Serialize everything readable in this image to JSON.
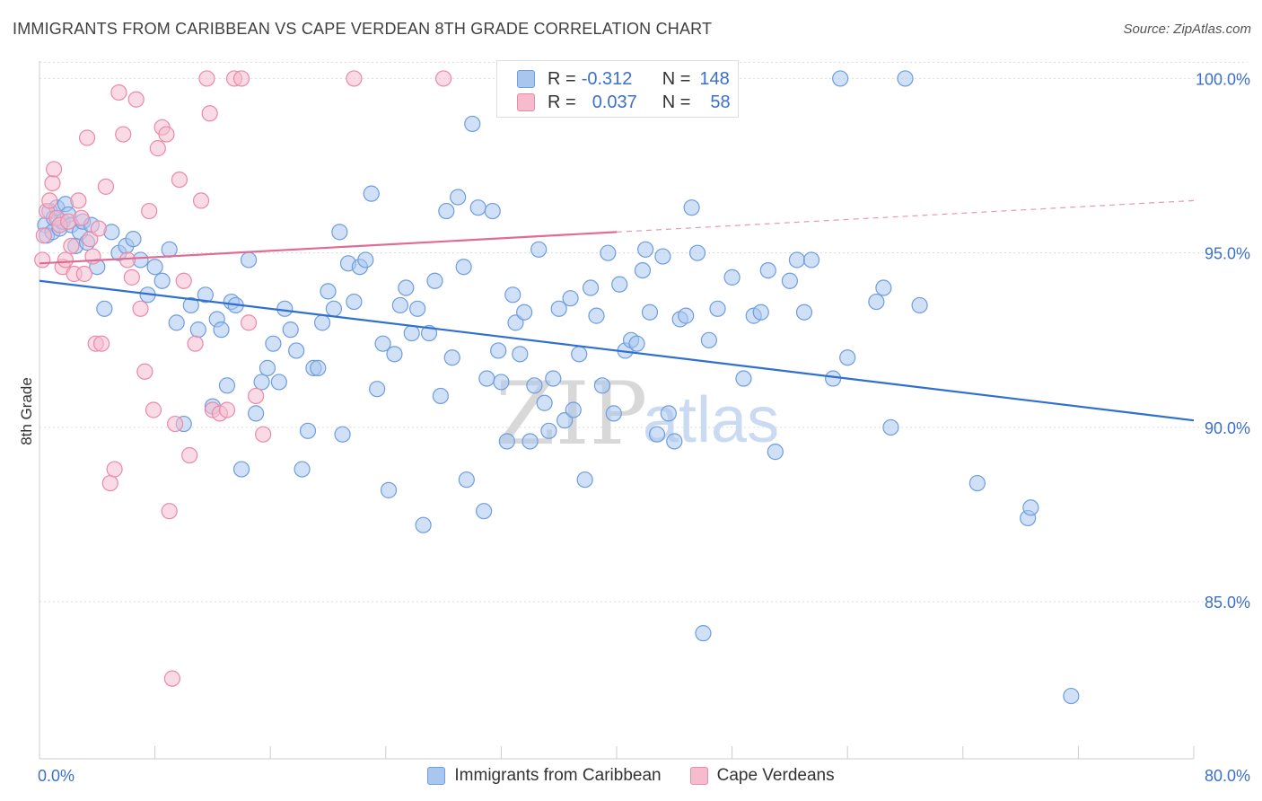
{
  "header": {
    "title": "IMMIGRANTS FROM CARIBBEAN VS CAPE VERDEAN 8TH GRADE CORRELATION CHART",
    "source": "Source: ZipAtlas.com"
  },
  "watermark": {
    "part1": "ZIP",
    "part2": "atlas"
  },
  "stats": [
    {
      "r_label": "R =",
      "r_value": "-0.312",
      "n_label": "N =",
      "n_value": "148",
      "color": "#a9c6ef",
      "border": "#6e9de0"
    },
    {
      "r_label": "R =",
      "r_value": "0.037",
      "n_label": "N =",
      "n_value": "58",
      "color": "#f6bccd",
      "border": "#e98aa7"
    }
  ],
  "legend": [
    {
      "label": "Immigrants from Caribbean",
      "color": "#a9c6ef",
      "border": "#6e9de0"
    },
    {
      "label": "Cape Verdeans",
      "color": "#f6bccd",
      "border": "#e98aa7"
    }
  ],
  "chart_data": {
    "type": "scatter",
    "ylabel": "8th Grade",
    "xlim": [
      0,
      80
    ],
    "ylim": [
      80.5,
      100.5
    ],
    "x_tick_labels": [
      {
        "value": 0,
        "label": "0.0%"
      },
      {
        "value": 80,
        "label": "80.0%"
      }
    ],
    "y_tick_labels": [
      {
        "value": 100,
        "label": "100.0%"
      },
      {
        "value": 95,
        "label": "95.0%"
      },
      {
        "value": 90,
        "label": "90.0%"
      },
      {
        "value": 85,
        "label": "85.0%"
      }
    ],
    "grid": true,
    "legend_position": "bottom-center",
    "series": [
      {
        "name": "Immigrants from Caribbean",
        "color": "#6e9de0",
        "fill": "#a9c6ef",
        "line_color": "#2f6fd0",
        "trend": {
          "x": [
            0,
            80
          ],
          "y": [
            94.2,
            90.2
          ]
        },
        "points": [
          [
            0.4,
            95.8
          ],
          [
            0.5,
            95.5
          ],
          [
            0.7,
            96.2
          ],
          [
            0.9,
            95.6
          ],
          [
            1.0,
            96.0
          ],
          [
            1.2,
            96.3
          ],
          [
            1.4,
            95.7
          ],
          [
            1.6,
            95.9
          ],
          [
            1.8,
            96.4
          ],
          [
            2.0,
            96.1
          ],
          [
            2.2,
            95.8
          ],
          [
            2.5,
            95.2
          ],
          [
            2.8,
            95.6
          ],
          [
            3.0,
            95.9
          ],
          [
            3.3,
            95.3
          ],
          [
            3.6,
            95.8
          ],
          [
            4.0,
            94.6
          ],
          [
            4.5,
            93.4
          ],
          [
            5.0,
            95.6
          ],
          [
            5.5,
            95.0
          ],
          [
            6.0,
            95.2
          ],
          [
            6.5,
            95.4
          ],
          [
            7.0,
            94.8
          ],
          [
            7.5,
            93.8
          ],
          [
            8.0,
            94.6
          ],
          [
            8.5,
            94.2
          ],
          [
            9.0,
            95.1
          ],
          [
            9.5,
            93.0
          ],
          [
            10.0,
            90.1
          ],
          [
            10.5,
            93.5
          ],
          [
            11.0,
            92.8
          ],
          [
            11.5,
            93.8
          ],
          [
            12.0,
            90.6
          ],
          [
            12.3,
            93.1
          ],
          [
            12.6,
            92.8
          ],
          [
            13.0,
            91.2
          ],
          [
            13.3,
            93.6
          ],
          [
            13.6,
            93.5
          ],
          [
            14.0,
            88.8
          ],
          [
            14.5,
            94.8
          ],
          [
            15.0,
            90.4
          ],
          [
            15.4,
            91.3
          ],
          [
            15.8,
            91.7
          ],
          [
            16.2,
            92.4
          ],
          [
            16.6,
            91.3
          ],
          [
            17.0,
            93.4
          ],
          [
            17.4,
            92.8
          ],
          [
            17.8,
            92.2
          ],
          [
            18.2,
            88.8
          ],
          [
            18.6,
            89.9
          ],
          [
            19.0,
            91.7
          ],
          [
            19.3,
            91.7
          ],
          [
            19.6,
            93.0
          ],
          [
            20.0,
            93.9
          ],
          [
            20.4,
            93.4
          ],
          [
            20.8,
            95.6
          ],
          [
            21.0,
            89.8
          ],
          [
            21.4,
            94.7
          ],
          [
            21.8,
            93.6
          ],
          [
            22.2,
            94.6
          ],
          [
            22.6,
            94.8
          ],
          [
            23.0,
            96.7
          ],
          [
            23.4,
            91.1
          ],
          [
            23.8,
            92.4
          ],
          [
            24.2,
            88.2
          ],
          [
            24.6,
            92.1
          ],
          [
            25.0,
            93.5
          ],
          [
            25.4,
            94.0
          ],
          [
            25.8,
            92.7
          ],
          [
            26.2,
            93.4
          ],
          [
            26.6,
            87.2
          ],
          [
            27.0,
            92.7
          ],
          [
            27.4,
            94.2
          ],
          [
            27.8,
            90.9
          ],
          [
            28.2,
            96.2
          ],
          [
            28.6,
            92.0
          ],
          [
            29.0,
            96.6
          ],
          [
            29.4,
            94.6
          ],
          [
            29.6,
            88.5
          ],
          [
            30.0,
            98.7
          ],
          [
            30.4,
            96.3
          ],
          [
            30.8,
            87.6
          ],
          [
            31.0,
            91.4
          ],
          [
            31.4,
            96.2
          ],
          [
            31.8,
            92.2
          ],
          [
            32.0,
            91.3
          ],
          [
            32.4,
            89.6
          ],
          [
            32.8,
            93.8
          ],
          [
            33.0,
            93.0
          ],
          [
            33.3,
            92.1
          ],
          [
            33.6,
            93.3
          ],
          [
            34.0,
            89.6
          ],
          [
            34.3,
            91.2
          ],
          [
            34.6,
            95.1
          ],
          [
            35.0,
            90.7
          ],
          [
            35.3,
            89.9
          ],
          [
            35.6,
            91.4
          ],
          [
            36.0,
            93.4
          ],
          [
            36.4,
            90.2
          ],
          [
            36.8,
            93.7
          ],
          [
            37.0,
            90.5
          ],
          [
            37.4,
            92.1
          ],
          [
            37.8,
            88.5
          ],
          [
            38.2,
            94.0
          ],
          [
            38.6,
            93.2
          ],
          [
            39.0,
            91.2
          ],
          [
            39.4,
            95.0
          ],
          [
            39.8,
            90.4
          ],
          [
            40.2,
            94.1
          ],
          [
            40.6,
            92.2
          ],
          [
            41.0,
            92.5
          ],
          [
            41.4,
            92.4
          ],
          [
            41.8,
            94.5
          ],
          [
            42.0,
            95.1
          ],
          [
            42.3,
            93.3
          ],
          [
            42.8,
            89.8
          ],
          [
            43.2,
            94.9
          ],
          [
            43.6,
            90.4
          ],
          [
            44.0,
            89.6
          ],
          [
            44.4,
            93.1
          ],
          [
            44.8,
            93.2
          ],
          [
            45.2,
            96.3
          ],
          [
            45.6,
            95.0
          ],
          [
            46.0,
            84.1
          ],
          [
            46.4,
            92.5
          ],
          [
            47.0,
            93.4
          ],
          [
            48.0,
            94.3
          ],
          [
            48.8,
            91.4
          ],
          [
            49.5,
            93.2
          ],
          [
            50.0,
            93.3
          ],
          [
            50.5,
            94.5
          ],
          [
            51.0,
            89.3
          ],
          [
            52.0,
            94.2
          ],
          [
            52.5,
            94.8
          ],
          [
            53.0,
            93.3
          ],
          [
            53.5,
            94.8
          ],
          [
            55.0,
            91.4
          ],
          [
            55.5,
            100.0
          ],
          [
            56.0,
            92.0
          ],
          [
            58.0,
            93.6
          ],
          [
            58.5,
            94.0
          ],
          [
            59.0,
            90.0
          ],
          [
            60.0,
            100.0
          ],
          [
            61.0,
            93.5
          ],
          [
            65.0,
            88.4
          ],
          [
            68.5,
            87.4
          ],
          [
            68.7,
            87.7
          ],
          [
            71.5,
            82.3
          ]
        ]
      },
      {
        "name": "Cape Verdeans",
        "color": "#e98aa7",
        "fill": "#f6bccd",
        "line_color": "#e06b94",
        "trend": {
          "x": [
            0,
            40
          ],
          "y": [
            94.7,
            95.6
          ],
          "dash_x": [
            40,
            80
          ],
          "dash_y": [
            95.6,
            96.5
          ]
        },
        "points": [
          [
            0.2,
            94.8
          ],
          [
            0.3,
            95.5
          ],
          [
            0.5,
            96.2
          ],
          [
            0.7,
            96.5
          ],
          [
            0.9,
            97.0
          ],
          [
            1.0,
            97.4
          ],
          [
            1.2,
            96.0
          ],
          [
            1.4,
            95.8
          ],
          [
            1.6,
            94.6
          ],
          [
            1.8,
            94.8
          ],
          [
            2.0,
            95.9
          ],
          [
            2.2,
            95.2
          ],
          [
            2.4,
            94.4
          ],
          [
            2.7,
            96.5
          ],
          [
            2.9,
            96.0
          ],
          [
            3.1,
            94.4
          ],
          [
            3.3,
            98.3
          ],
          [
            3.5,
            95.4
          ],
          [
            3.7,
            94.9
          ],
          [
            3.9,
            92.4
          ],
          [
            4.1,
            95.7
          ],
          [
            4.3,
            92.4
          ],
          [
            4.6,
            96.9
          ],
          [
            4.9,
            88.4
          ],
          [
            5.2,
            88.8
          ],
          [
            5.5,
            99.6
          ],
          [
            5.8,
            98.4
          ],
          [
            6.1,
            94.8
          ],
          [
            6.4,
            94.3
          ],
          [
            6.7,
            99.4
          ],
          [
            7.0,
            93.4
          ],
          [
            7.3,
            91.6
          ],
          [
            7.6,
            96.2
          ],
          [
            7.9,
            90.5
          ],
          [
            8.2,
            98.0
          ],
          [
            8.5,
            98.6
          ],
          [
            8.8,
            98.4
          ],
          [
            9.0,
            87.6
          ],
          [
            9.2,
            82.8
          ],
          [
            9.4,
            90.1
          ],
          [
            9.7,
            97.1
          ],
          [
            10.0,
            94.2
          ],
          [
            10.4,
            89.2
          ],
          [
            10.8,
            92.4
          ],
          [
            11.2,
            96.5
          ],
          [
            11.6,
            100.0
          ],
          [
            11.8,
            99.0
          ],
          [
            12.0,
            90.5
          ],
          [
            12.5,
            90.4
          ],
          [
            13.0,
            90.5
          ],
          [
            13.5,
            100.0
          ],
          [
            14.0,
            100.0
          ],
          [
            14.5,
            93.0
          ],
          [
            15.0,
            90.9
          ],
          [
            15.5,
            89.8
          ],
          [
            21.8,
            100.0
          ],
          [
            28.0,
            100.0
          ],
          [
            35.0,
            100.0
          ]
        ]
      }
    ]
  }
}
